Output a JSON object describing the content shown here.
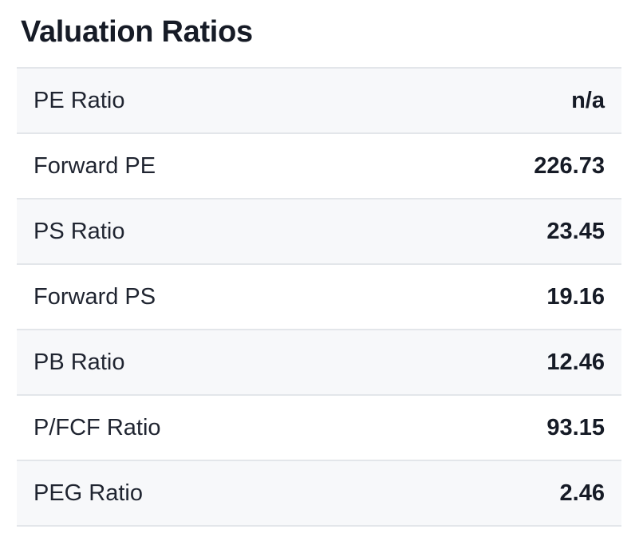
{
  "title": "Valuation Ratios",
  "rows": [
    {
      "label": "PE Ratio",
      "value": "n/a"
    },
    {
      "label": "Forward PE",
      "value": "226.73"
    },
    {
      "label": "PS Ratio",
      "value": "23.45"
    },
    {
      "label": "Forward PS",
      "value": "19.16"
    },
    {
      "label": "PB Ratio",
      "value": "12.46"
    },
    {
      "label": "P/FCF Ratio",
      "value": "93.15"
    },
    {
      "label": "PEG Ratio",
      "value": "2.46"
    }
  ],
  "colors": {
    "text": "#161b26",
    "stripe": "#f7f8fa",
    "border": "#e3e6ea",
    "background": "#ffffff"
  }
}
